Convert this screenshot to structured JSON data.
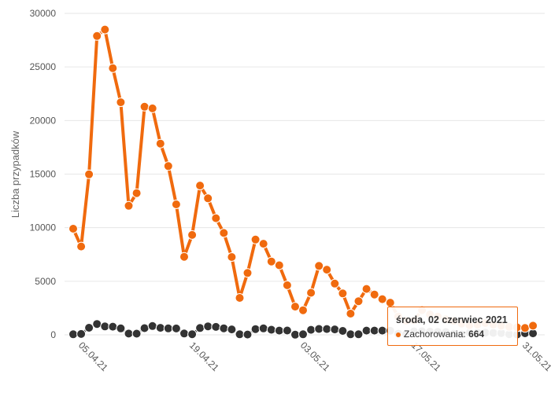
{
  "chart_data": {
    "type": "line",
    "ylabel": "Liczba przypadków",
    "ylim": [
      0,
      30000
    ],
    "yticks": [
      "0",
      "5000",
      "10000",
      "15000",
      "20000",
      "25000",
      "30000"
    ],
    "x_ticks": [
      "05.04.21",
      "19.04.21",
      "03.05.21",
      "17.05.21",
      "31.05.21"
    ],
    "x_tick_indices": [
      1,
      15,
      29,
      43,
      57
    ],
    "grid": true,
    "series": [
      {
        "name": "Zachorowania",
        "color": "#f06a0e",
        "values": [
          9902,
          8246,
          14975,
          27887,
          28487,
          24888,
          21703,
          12045,
          13227,
          21283,
          21130,
          17847,
          15750,
          12177,
          7284,
          9324,
          13926,
          12742,
          10883,
          9507,
          7265,
          3451,
          5773,
          8890,
          8502,
          6847,
          6490,
          4625,
          2631,
          2297,
          3927,
          6434,
          6078,
          4786,
          3867,
          1977,
          3139,
          4286,
          3761,
          3328,
          2999,
          1710,
          1310,
          1350,
          2303,
          1900,
          1700,
          1450,
          1300,
          1050,
          900,
          950,
          1100,
          950,
          850,
          750,
          700,
          638,
          848
        ]
      },
      {
        "name": "Zgony",
        "color": "#333333",
        "values": [
          54,
          78,
          658,
          1015,
          784,
          762,
          598,
          121,
          109,
          624,
          822,
          656,
          603,
          593,
          125,
          59,
          637,
          791,
          740,
          612,
          504,
          53,
          26,
          533,
          601,
          478,
          396,
          407,
          15,
          48,
          466,
          548,
          541,
          507,
          370,
          50,
          50,
          399,
          399,
          399,
          389,
          100,
          50,
          320,
          330,
          300,
          280,
          260,
          100,
          40,
          200,
          210,
          200,
          180,
          170,
          60,
          30,
          150,
          140
        ]
      }
    ]
  },
  "tooltip": {
    "title": "środa, 02 czerwiec 2021",
    "label": "Zachorowania:",
    "value": "664"
  }
}
